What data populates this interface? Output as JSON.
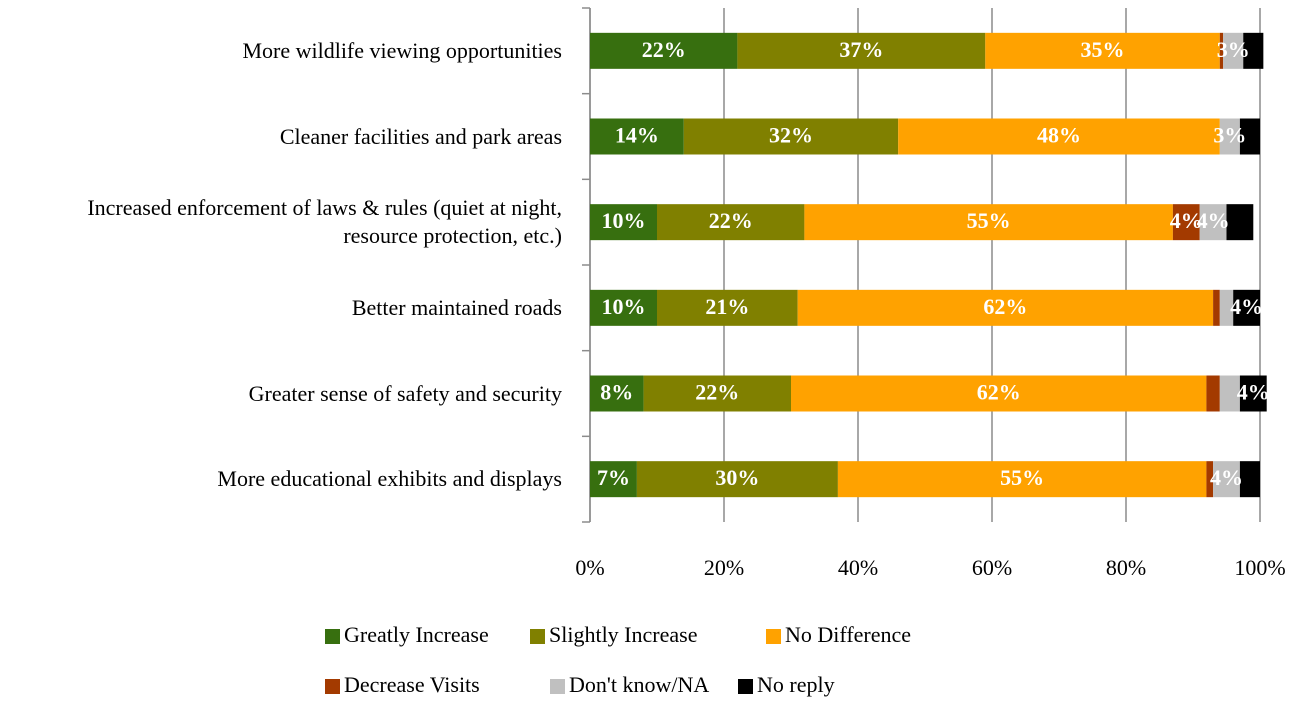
{
  "chart_data": {
    "type": "stacked_bar_horizontal",
    "categories": [
      "More wildlife viewing opportunities",
      "Cleaner facilities and park areas",
      "Increased enforcement of laws & rules (quiet at night, resource protection, etc.)",
      "Better maintained roads",
      "Greater sense of safety and security",
      "More educational exhibits and displays"
    ],
    "series": [
      {
        "name": "Greatly Increase",
        "color": "#376f0f",
        "values": [
          22,
          14,
          10,
          10,
          8,
          7
        ],
        "value_labels": [
          "22%",
          "14%",
          "10%",
          "10%",
          "8%",
          "7%"
        ]
      },
      {
        "name": "Slightly Increase",
        "color": "#808000",
        "values": [
          37,
          32,
          22,
          21,
          22,
          30
        ],
        "value_labels": [
          "37%",
          "32%",
          "22%",
          "21%",
          "22%",
          "30%"
        ]
      },
      {
        "name": "No Difference",
        "color": "#ffa200",
        "values": [
          35,
          48,
          55,
          62,
          62,
          55
        ],
        "value_labels": [
          "35%",
          "48%",
          "55%",
          "62%",
          "62%",
          "55%"
        ]
      },
      {
        "name": "Decrease Visits",
        "color": "#a33a00",
        "values": [
          0.5,
          0,
          4,
          1,
          2,
          1
        ],
        "value_labels": [
          null,
          null,
          "4%",
          null,
          null,
          null
        ]
      },
      {
        "name": "Don't know/NA",
        "color": "#c0c0c0",
        "values": [
          3,
          3,
          4,
          2,
          3,
          4
        ],
        "value_labels": [
          "3%",
          "3%",
          "4%",
          null,
          null,
          "4%"
        ]
      },
      {
        "name": "No reply",
        "color": "#000000",
        "values": [
          3,
          3,
          4,
          4,
          4,
          3
        ],
        "value_labels": [
          null,
          null,
          null,
          "4%",
          "4%",
          null
        ]
      }
    ],
    "xlim": [
      0,
      100
    ],
    "xticks": [
      {
        "value": 0,
        "label": "0%"
      },
      {
        "value": 20,
        "label": "20%"
      },
      {
        "value": 40,
        "label": "40%"
      },
      {
        "value": 60,
        "label": "60%"
      },
      {
        "value": 80,
        "label": "80%"
      },
      {
        "value": 100,
        "label": "100%"
      }
    ],
    "grid": true
  }
}
